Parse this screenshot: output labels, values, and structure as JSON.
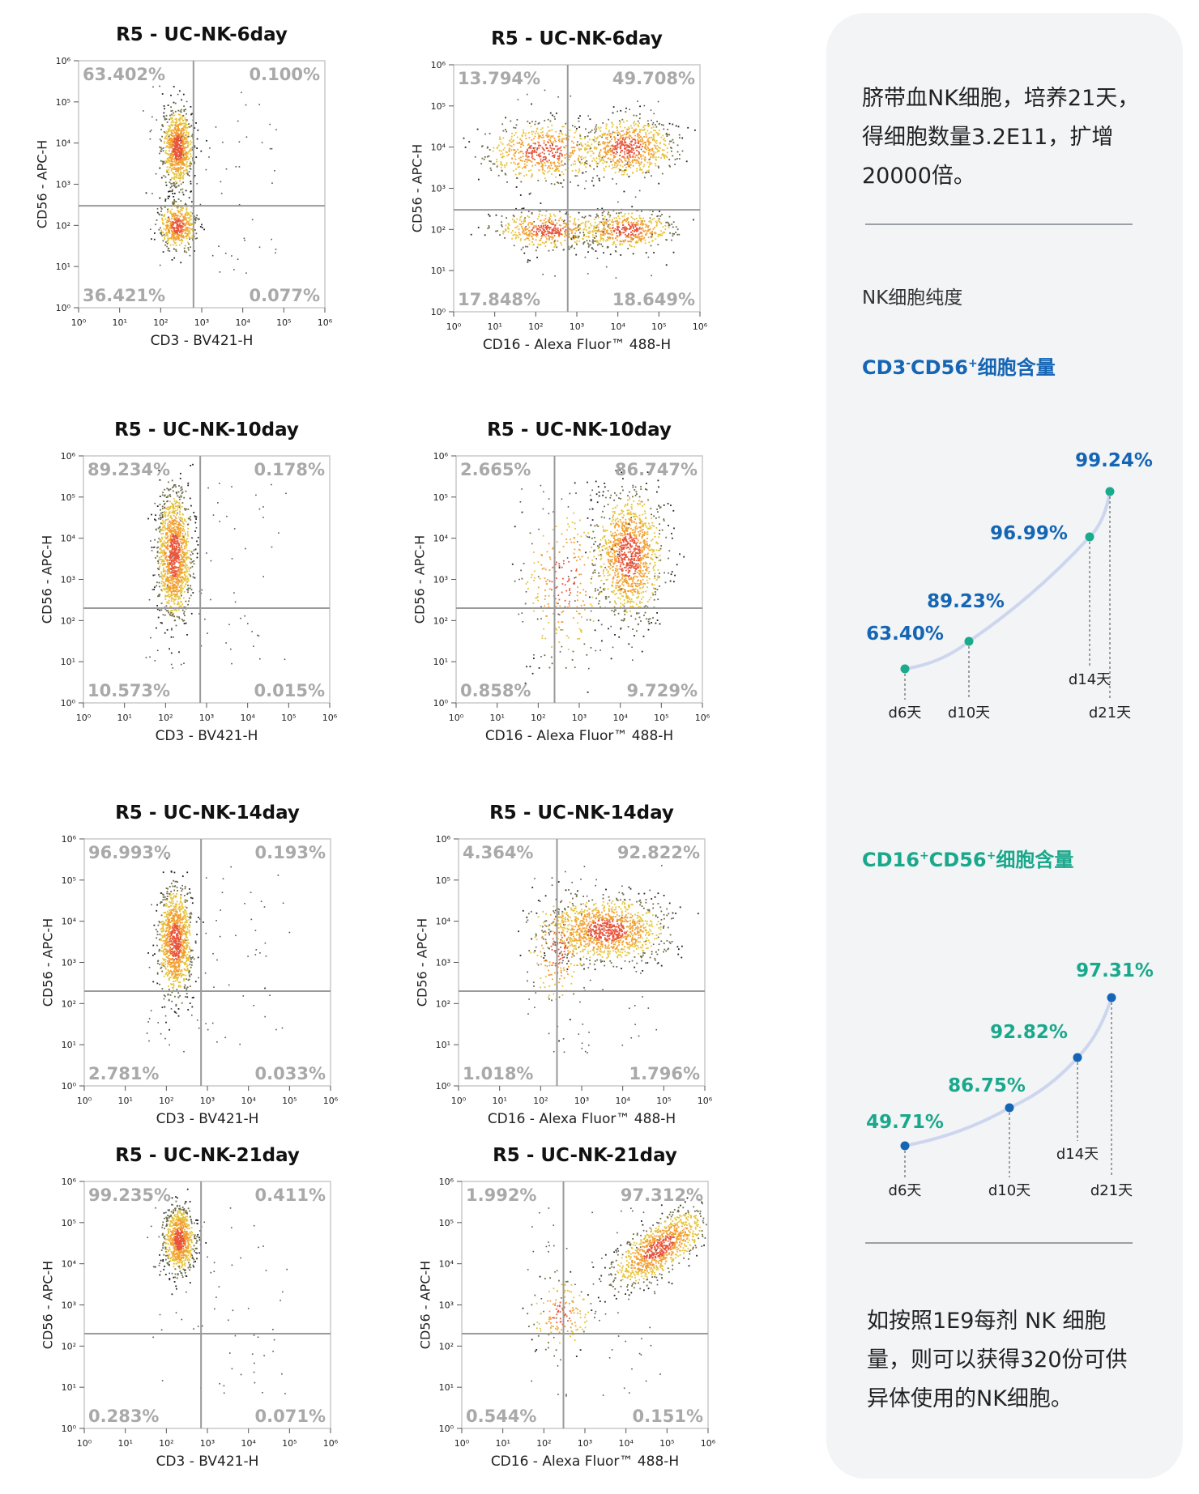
{
  "chart_data": [
    {
      "type": "scatter",
      "title": "R5 - UC-NK-6day",
      "xlabel": "CD3 - BV421-H",
      "ylabel": "CD56 - APC-H",
      "xlim": [
        1,
        1000000
      ],
      "ylim": [
        1,
        1000000
      ],
      "scale": "log",
      "quadrant_gate": [
        630,
        300
      ],
      "quadrants": {
        "upper_left": "63.402%",
        "upper_right": "0.100%",
        "lower_left": "36.421%",
        "lower_right": "0.077%"
      }
    },
    {
      "type": "scatter",
      "title": "R5 - UC-NK-6day",
      "xlabel": "CD16 - Alexa Fluor™ 488-H",
      "ylabel": "CD56 - APC-H",
      "xlim": [
        1,
        1000000
      ],
      "ylim": [
        1,
        1000000
      ],
      "scale": "log",
      "quadrant_gate": [
        600,
        300
      ],
      "quadrants": {
        "upper_left": "13.794%",
        "upper_right": "49.708%",
        "lower_left": "17.848%",
        "lower_right": "18.649%"
      }
    },
    {
      "type": "scatter",
      "title": "R5 - UC-NK-10day",
      "xlabel": "CD3 - BV421-H",
      "ylabel": "CD56 - APC-H",
      "xlim": [
        1,
        1000000
      ],
      "ylim": [
        1,
        1000000
      ],
      "scale": "log",
      "quadrant_gate": [
        700,
        200
      ],
      "quadrants": {
        "upper_left": "89.234%",
        "upper_right": "0.178%",
        "lower_left": "10.573%",
        "lower_right": "0.015%"
      }
    },
    {
      "type": "scatter",
      "title": "R5 - UC-NK-10day",
      "xlabel": "CD16 - Alexa Fluor™ 488-H",
      "ylabel": "CD56 - APC-H",
      "xlim": [
        1,
        1000000
      ],
      "ylim": [
        1,
        1000000
      ],
      "scale": "log",
      "quadrant_gate": [
        250,
        200
      ],
      "quadrants": {
        "upper_left": "2.665%",
        "upper_right": "86.747%",
        "lower_left": "0.858%",
        "lower_right": "9.729%"
      }
    },
    {
      "type": "scatter",
      "title": "R5 - UC-NK-14day",
      "xlabel": "CD3 - BV421-H",
      "ylabel": "CD56 - APC-H",
      "xlim": [
        1,
        1000000
      ],
      "ylim": [
        1,
        1000000
      ],
      "scale": "log",
      "quadrant_gate": [
        700,
        200
      ],
      "quadrants": {
        "upper_left": "96.993%",
        "upper_right": "0.193%",
        "lower_left": "2.781%",
        "lower_right": "0.033%"
      }
    },
    {
      "type": "scatter",
      "title": "R5 - UC-NK-14day",
      "xlabel": "CD16 - Alexa Fluor™ 488-H",
      "ylabel": "CD56 - APC-H",
      "xlim": [
        1,
        1000000
      ],
      "ylim": [
        1,
        1000000
      ],
      "scale": "log",
      "quadrant_gate": [
        250,
        200
      ],
      "quadrants": {
        "upper_left": "4.364%",
        "upper_right": "92.822%",
        "lower_left": "1.018%",
        "lower_right": "1.796%"
      }
    },
    {
      "type": "scatter",
      "title": "R5 - UC-NK-21day",
      "xlabel": "CD3 - BV421-H",
      "ylabel": "CD56 - APC-H",
      "xlim": [
        1,
        1000000
      ],
      "ylim": [
        1,
        1000000
      ],
      "scale": "log",
      "quadrant_gate": [
        700,
        200
      ],
      "quadrants": {
        "upper_left": "99.235%",
        "upper_right": "0.411%",
        "lower_left": "0.283%",
        "lower_right": "0.071%"
      }
    },
    {
      "type": "scatter",
      "title": "R5 - UC-NK-21day",
      "xlabel": "CD16 - Alexa Fluor™ 488-H",
      "ylabel": "CD56 - APC-H",
      "xlim": [
        1,
        1000000
      ],
      "ylim": [
        1,
        1000000
      ],
      "scale": "log",
      "quadrant_gate": [
        300,
        200
      ],
      "quadrants": {
        "upper_left": "1.992%",
        "upper_right": "97.312%",
        "lower_left": "0.544%",
        "lower_right": "0.151%"
      }
    },
    {
      "type": "line",
      "title": "CD3-CD56+细胞含量",
      "categories": [
        "d6天",
        "d10天",
        "d14天",
        "d21天"
      ],
      "values": [
        63.4,
        89.23,
        96.99,
        99.24
      ],
      "value_labels": [
        "63.40%",
        "89.23%",
        "96.99%",
        "99.24%"
      ],
      "color": "#1565b5",
      "marker_color": "#1aaa8c"
    },
    {
      "type": "line",
      "title": "CD16+CD56+细胞含量",
      "categories": [
        "d6天",
        "d10天",
        "d14天",
        "d21天"
      ],
      "values": [
        49.71,
        86.75,
        92.82,
        97.31
      ],
      "value_labels": [
        "49.71%",
        "86.75%",
        "92.82%",
        "97.31%"
      ],
      "color": "#1aa88c",
      "marker_color": "#1565b5"
    }
  ],
  "tick_labels": [
    "10⁰",
    "10¹",
    "10²",
    "10³",
    "10⁴",
    "10⁵",
    "10⁶"
  ],
  "sidebar": {
    "intro": "脐带血NK细胞，培养21天，得细胞数量3.2E11，扩增20000倍。",
    "purity_label": "NK细胞纯度",
    "head1": {
      "a": "CD3",
      "sup1": "-",
      "b": "CD56",
      "sup2": "+",
      "c": "细胞含量"
    },
    "head2": {
      "a": "CD16",
      "sup1": "+",
      "b": "CD56",
      "sup2": "+",
      "c": "细胞含量"
    },
    "outro": "如按照1E9每剂 NK 细胞量，则可以获得320份可供异体使用的NK细胞。"
  },
  "colors": {
    "blue": "#1565b5",
    "teal": "#1aa88c",
    "quadrant_text": "#a9a9a9",
    "sidebar_bg": "#f2f4f5"
  }
}
